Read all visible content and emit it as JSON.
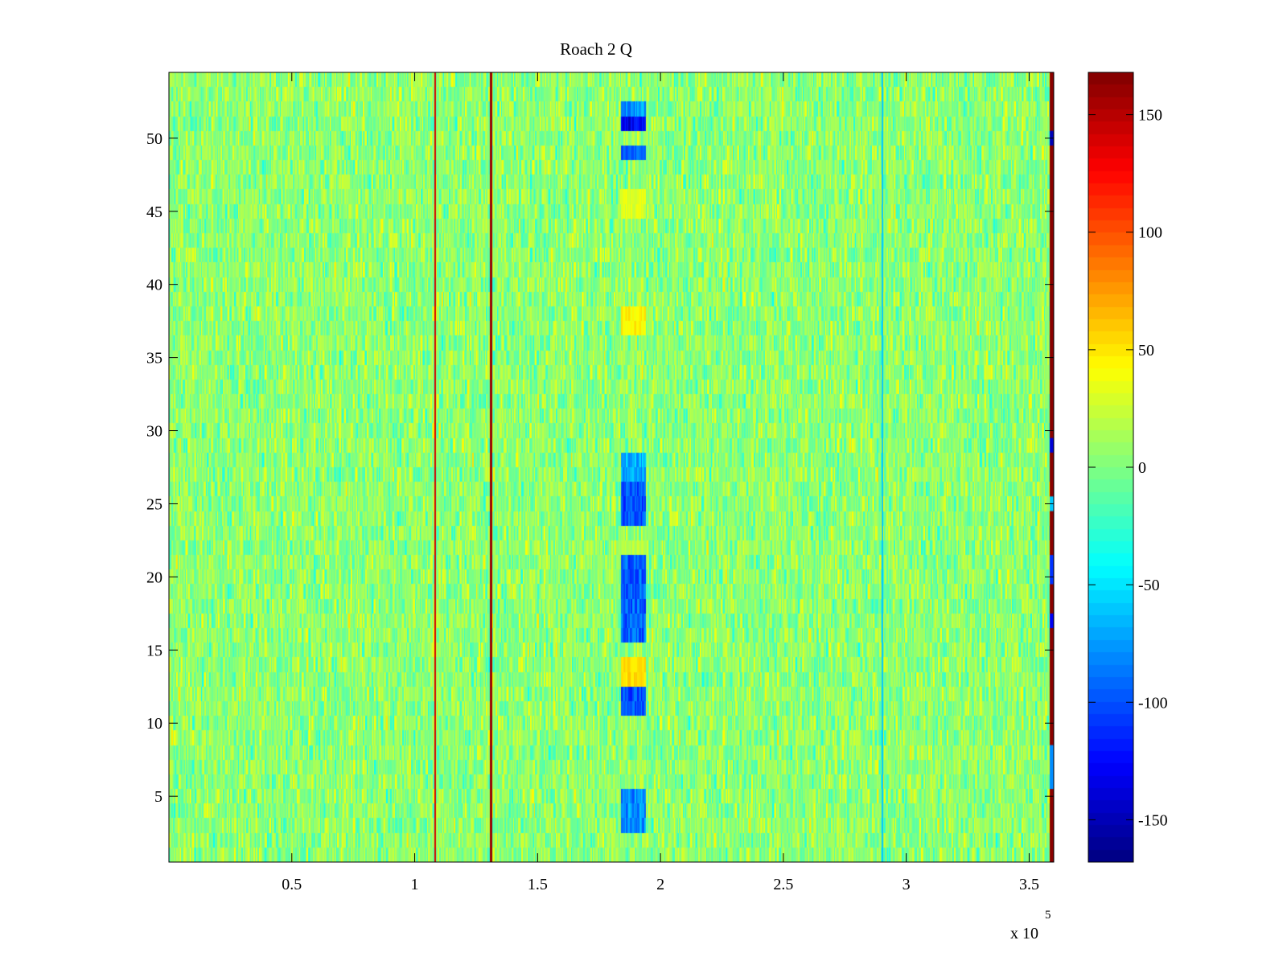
{
  "chart_data": {
    "type": "heatmap",
    "title": "Roach 2 Q",
    "xlabel": "",
    "ylabel": "",
    "x_scale_label": "x 10",
    "x_scale_exponent": "5",
    "xlim": [
      0,
      3.6
    ],
    "ylim": [
      0.5,
      54.5
    ],
    "x_ticks": [
      0.5,
      1,
      1.5,
      2,
      2.5,
      3,
      3.5
    ],
    "x_tick_labels": [
      "0.5",
      "1",
      "1.5",
      "2",
      "2.5",
      "3",
      "3.5"
    ],
    "y_ticks": [
      5,
      10,
      15,
      20,
      25,
      30,
      35,
      40,
      45,
      50
    ],
    "y_tick_labels": [
      "5",
      "10",
      "15",
      "20",
      "25",
      "30",
      "35",
      "40",
      "45",
      "50"
    ],
    "rows": 54,
    "colormap": "jet",
    "colorbar": {
      "clim": [
        -168,
        168
      ],
      "ticks": [
        -150,
        -100,
        -50,
        0,
        50,
        100,
        150
      ],
      "tick_labels": [
        "-150",
        "-100",
        "-50",
        "0",
        "50",
        "100",
        "150"
      ]
    },
    "background_range": [
      -35,
      35
    ],
    "vertical_lines": [
      {
        "x": 1.08,
        "value": 140,
        "rows": "all"
      },
      {
        "x": 1.305,
        "value": 160,
        "rows": "all"
      },
      {
        "x": 2.9,
        "value": -60,
        "rows": "all"
      },
      {
        "x": 3.585,
        "value": 165,
        "rows": "1-54, interrupted by negative cells at rows 6-8, 29, 50"
      }
    ],
    "anomaly_band": {
      "x_range": [
        1.84,
        1.94
      ],
      "negative_rows": [
        {
          "rows": [
            52,
            52
          ],
          "value": -80
        },
        {
          "rows": [
            51,
            51
          ],
          "value": -130
        },
        {
          "rows": [
            49,
            49
          ],
          "value": -90
        },
        {
          "rows": [
            27,
            28
          ],
          "value": -70
        },
        {
          "rows": [
            24,
            26
          ],
          "value": -100
        },
        {
          "rows": [
            16,
            21
          ],
          "value": -95
        },
        {
          "rows": [
            11,
            12
          ],
          "value": -100
        },
        {
          "rows": [
            3,
            5
          ],
          "value": -80
        }
      ],
      "positive_rows": [
        {
          "rows": [
            45,
            46
          ],
          "value": 30
        },
        {
          "rows": [
            37,
            38
          ],
          "value": 45
        },
        {
          "rows": [
            13,
            14
          ],
          "value": 55
        },
        {
          "rows": [
            22,
            22
          ],
          "value": 20
        }
      ]
    }
  }
}
